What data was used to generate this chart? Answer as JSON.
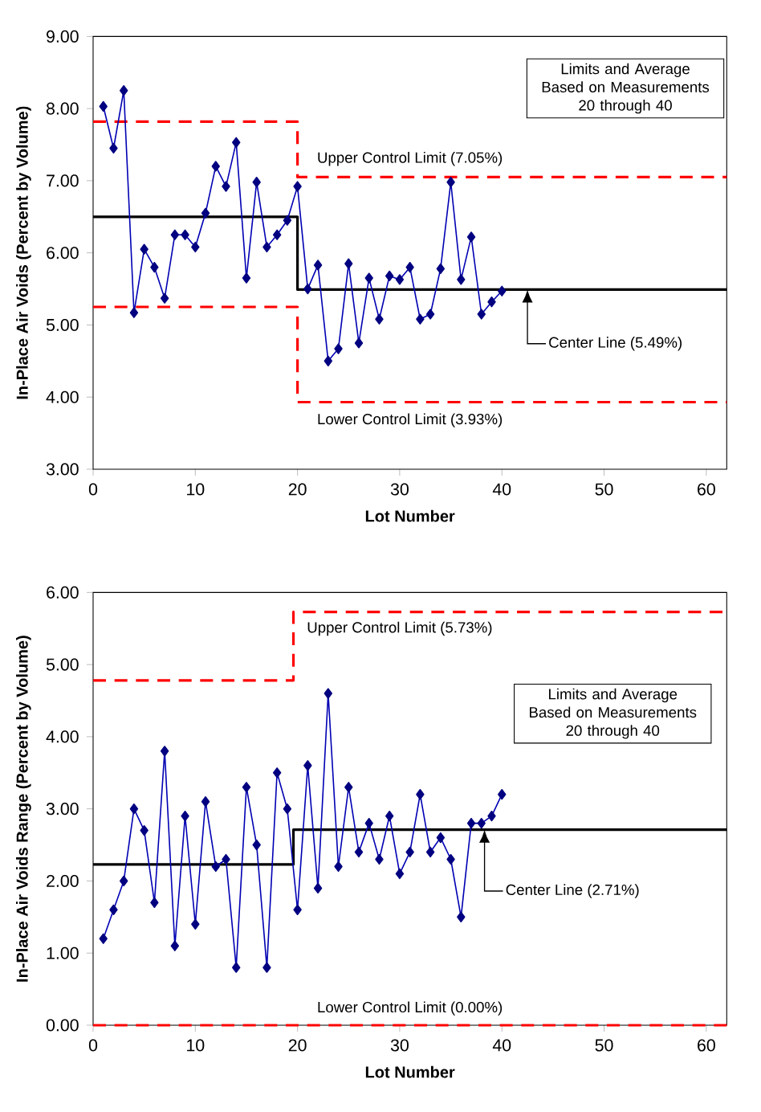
{
  "chart_data": [
    {
      "type": "line",
      "xlabel": "Lot Number",
      "ylabel": "In-Place Air Voids (Percent by Volume)",
      "annotations": [
        "Limits and Average Based on Measurements 20 through 40"
      ],
      "xlim": [
        0,
        62
      ],
      "xticks": [
        0,
        10,
        20,
        30,
        40,
        50,
        60
      ],
      "ylim": [
        3,
        9
      ],
      "yticks": [
        {
          "value": 3,
          "label": "3.00"
        },
        {
          "value": 4,
          "label": "4.00"
        },
        {
          "value": 5,
          "label": "5.00"
        },
        {
          "value": 6,
          "label": "6.00"
        },
        {
          "value": 7,
          "label": "7.00"
        },
        {
          "value": 8,
          "label": "8.00"
        },
        {
          "value": 9,
          "label": "9.00"
        }
      ],
      "grid": false,
      "legend": false,
      "x": [
        1,
        2,
        3,
        4,
        5,
        6,
        7,
        8,
        9,
        10,
        11,
        12,
        13,
        14,
        15,
        16,
        17,
        18,
        19,
        20,
        21,
        22,
        23,
        24,
        25,
        26,
        27,
        28,
        29,
        30,
        31,
        32,
        33,
        34,
        35,
        36,
        37,
        38,
        39,
        40
      ],
      "series": [
        {
          "color": "#000080",
          "marker": "diamond",
          "line_style": "solid",
          "values": [
            8.03,
            7.45,
            8.25,
            5.17,
            6.05,
            5.8,
            5.37,
            6.25,
            6.25,
            6.08,
            6.55,
            7.2,
            6.92,
            7.53,
            5.65,
            6.98,
            6.08,
            6.25,
            6.45,
            6.92,
            5.5,
            5.83,
            4.5,
            4.67,
            5.85,
            4.75,
            5.65,
            5.08,
            5.68,
            5.63,
            5.8,
            5.08,
            5.15,
            5.78,
            6.98,
            5.63,
            6.22,
            5.15,
            5.32,
            5.47
          ]
        },
        {
          "name": "Upper Control Limit (7.05%)",
          "color": "#ff0000",
          "marker": "none",
          "line_style": "dashed",
          "x": [
            0,
            20,
            20,
            62
          ],
          "values": [
            7.82,
            7.82,
            7.05,
            7.05
          ]
        },
        {
          "name": "Center Line (5.49%)",
          "color": "#000000",
          "marker": "none",
          "line_style": "solid",
          "x": [
            0,
            20,
            20,
            62
          ],
          "values": [
            6.5,
            6.5,
            5.49,
            5.49
          ]
        },
        {
          "name": "Lower Control Limit (3.93%)",
          "color": "#ff0000",
          "marker": "none",
          "line_style": "dashed",
          "x": [
            0,
            20,
            20,
            62
          ],
          "values": [
            5.25,
            5.25,
            3.93,
            3.93
          ]
        }
      ]
    },
    {
      "type": "line",
      "xlabel": "Lot Number",
      "ylabel": "In-Place Air Voids Range (Percent by Volume)",
      "annotations": [
        "Limits and Average Based on Measurements 20 through 40"
      ],
      "xlim": [
        0,
        62
      ],
      "xticks": [
        0,
        10,
        20,
        30,
        40,
        50,
        60
      ],
      "ylim": [
        0,
        6
      ],
      "yticks": [
        {
          "value": 0,
          "label": "0.00"
        },
        {
          "value": 1,
          "label": "1.00"
        },
        {
          "value": 2,
          "label": "2.00"
        },
        {
          "value": 3,
          "label": "3.00"
        },
        {
          "value": 4,
          "label": "4.00"
        },
        {
          "value": 5,
          "label": "5.00"
        },
        {
          "value": 6,
          "label": "6.00"
        }
      ],
      "grid": false,
      "legend": false,
      "x": [
        1,
        2,
        3,
        4,
        5,
        6,
        7,
        8,
        9,
        10,
        11,
        12,
        13,
        14,
        15,
        16,
        17,
        18,
        19,
        20,
        21,
        22,
        23,
        24,
        25,
        26,
        27,
        28,
        29,
        30,
        31,
        32,
        33,
        34,
        35,
        36,
        37,
        38,
        39,
        40
      ],
      "series": [
        {
          "color": "#000080",
          "marker": "diamond",
          "line_style": "solid",
          "values": [
            1.2,
            1.6,
            2.0,
            3.0,
            2.7,
            1.7,
            3.8,
            1.1,
            2.9,
            1.4,
            3.1,
            2.2,
            2.3,
            0.8,
            3.3,
            2.5,
            0.8,
            3.5,
            3.0,
            1.6,
            3.6,
            1.9,
            4.6,
            2.2,
            3.3,
            2.4,
            2.8,
            2.3,
            2.9,
            2.1,
            2.4,
            3.2,
            2.4,
            2.6,
            2.3,
            1.5,
            2.8,
            2.8,
            2.9,
            3.2
          ]
        },
        {
          "name": "Upper Control Limit (5.73%)",
          "color": "#ff0000",
          "marker": "none",
          "line_style": "dashed",
          "x": [
            0,
            19.6,
            19.6,
            62
          ],
          "values": [
            4.78,
            4.78,
            5.73,
            5.73
          ]
        },
        {
          "name": "Center Line (2.71%)",
          "color": "#000000",
          "marker": "none",
          "line_style": "solid",
          "x": [
            0,
            19.6,
            19.6,
            62
          ],
          "values": [
            2.23,
            2.23,
            2.71,
            2.71
          ]
        },
        {
          "name": "Lower Control Limit (0.00%)",
          "color": "#ff0000",
          "marker": "none",
          "line_style": "dashed",
          "x": [
            0,
            62
          ],
          "values": [
            0,
            0
          ]
        }
      ]
    }
  ]
}
